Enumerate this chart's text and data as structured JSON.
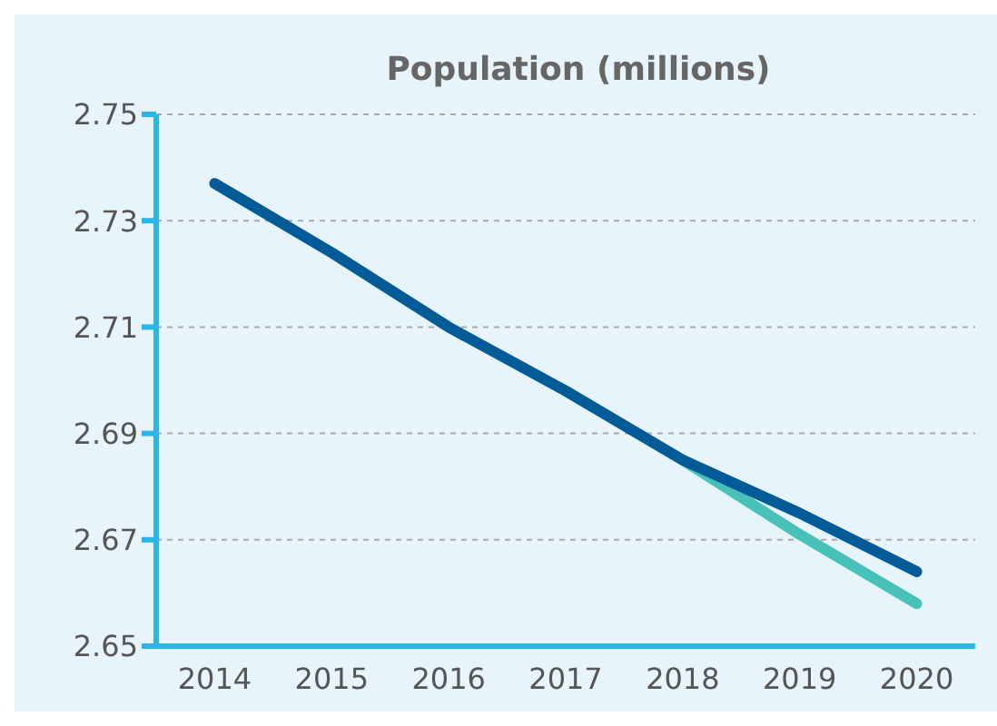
{
  "chart_data": {
    "type": "line",
    "title": "Population (millions)",
    "categories": [
      "2014",
      "2015",
      "2016",
      "2017",
      "2018",
      "2019",
      "2020"
    ],
    "series": [
      {
        "color": "#48c1b8",
        "values": [
          null,
          null,
          null,
          null,
          2.685,
          2.671,
          2.658
        ]
      },
      {
        "color": "#005b96",
        "values": [
          2.737,
          2.724,
          2.71,
          2.698,
          2.685,
          2.675,
          2.664
        ]
      }
    ],
    "ylim": [
      2.65,
      2.75
    ],
    "yticks": [
      2.65,
      2.67,
      2.69,
      2.71,
      2.73,
      2.75
    ],
    "grid": "y",
    "marker": "none",
    "line_style": "solid"
  }
}
